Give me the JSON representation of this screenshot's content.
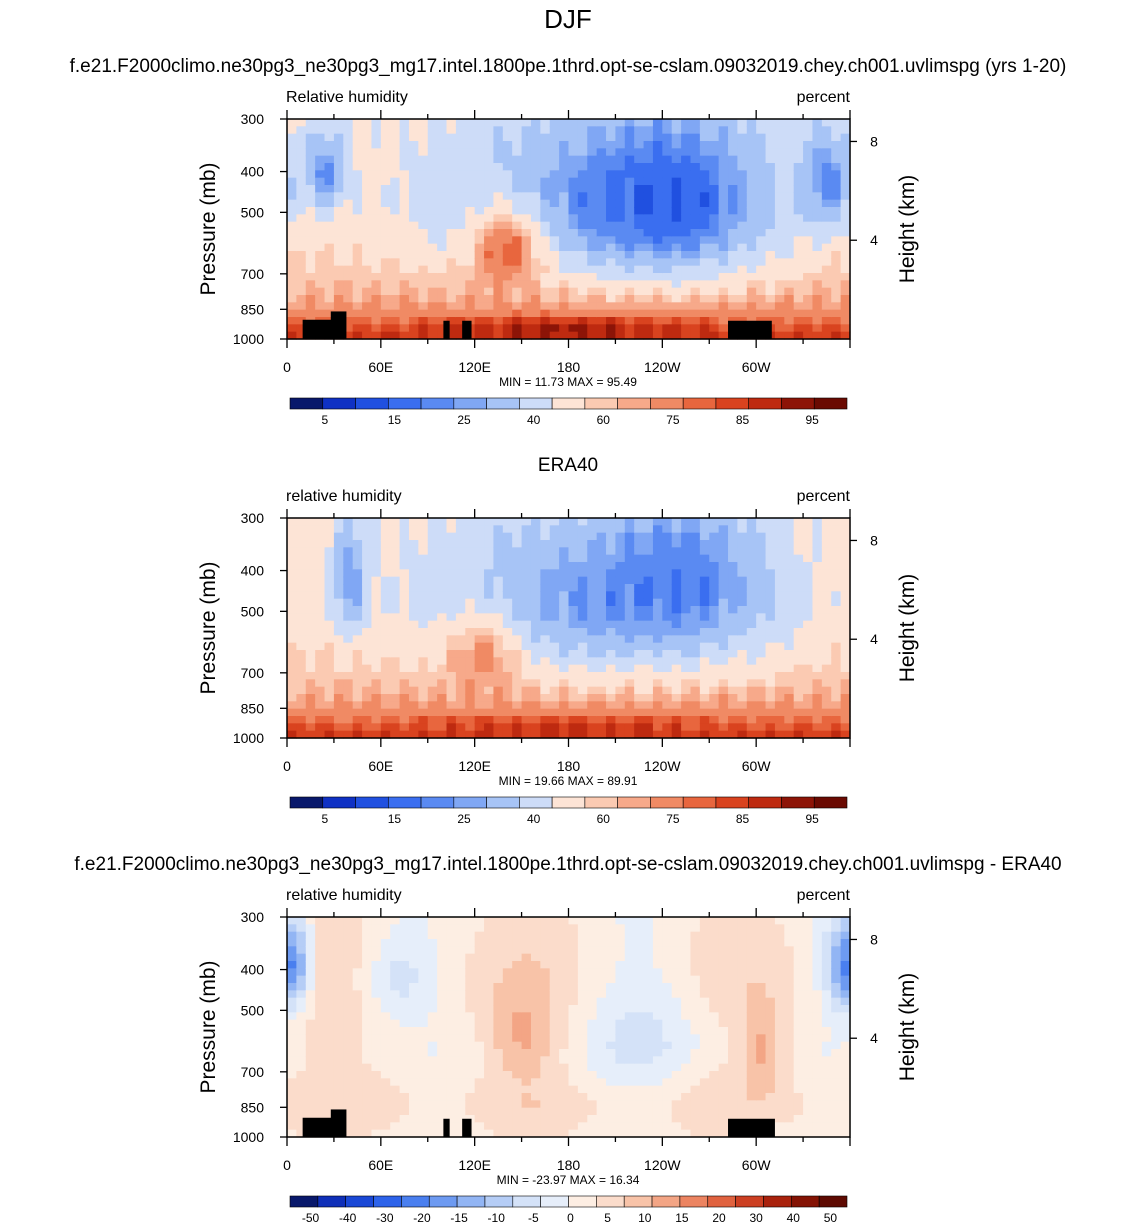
{
  "figure_title": "DJF",
  "chart_data": [
    {
      "type": "heatmap",
      "title": "f.e21.F2000climo.ne30pg3_ne30pg3_mg17.intel.1800pe.1thrd.opt-se-cslam.09032019.chey.ch001.uvlimspg (yrs 1-20)",
      "left_label": "Relative humidity",
      "right_label": "percent",
      "ylabel": "Pressure (mb)",
      "y2label": "Height (km)",
      "x_ticks": [
        "0",
        "60E",
        "120E",
        "180",
        "120W",
        "60W"
      ],
      "y_ticks": [
        "300",
        "400",
        "500",
        "700",
        "850",
        "1000"
      ],
      "y2_ticks": [
        "8",
        "4"
      ],
      "stats": "MIN = 11.73  MAX = 95.49",
      "colorbar_labels": [
        "5",
        "15",
        "25",
        "40",
        "60",
        "75",
        "85",
        "95"
      ],
      "levels": [
        0,
        5,
        10,
        15,
        20,
        25,
        30,
        40,
        50,
        60,
        65,
        70,
        75,
        80,
        85,
        90,
        95,
        100
      ],
      "features": [
        {
          "lon": 25,
          "p": 400,
          "value": 22,
          "radius_lon": 14,
          "radius_p": 90
        },
        {
          "lon": 245,
          "p": 470,
          "value": 15,
          "radius_lon": 55,
          "radius_p": 200
        },
        {
          "lon": 345,
          "p": 420,
          "value": 22,
          "radius_lon": 18,
          "radius_p": 120
        },
        {
          "lon": 140,
          "p": 620,
          "value": 78,
          "radius_lon": 25,
          "radius_p": 150
        },
        {
          "lon": 180,
          "p": 950,
          "value": 90,
          "radius_lon": 90,
          "radius_p": 60
        }
      ],
      "topography": [
        [
          10,
          30,
          900
        ],
        [
          28,
          38,
          860
        ],
        [
          100,
          104,
          905
        ],
        [
          112,
          118,
          905
        ],
        [
          282,
          310,
          905
        ]
      ]
    },
    {
      "type": "heatmap",
      "title": "ERA40",
      "left_label": "relative humidity",
      "right_label": "percent",
      "ylabel": "Pressure (mb)",
      "y2label": "Height (km)",
      "x_ticks": [
        "0",
        "60E",
        "120E",
        "180",
        "120W",
        "60W"
      ],
      "y_ticks": [
        "300",
        "400",
        "500",
        "700",
        "850",
        "1000"
      ],
      "y2_ticks": [
        "8",
        "4"
      ],
      "stats": "MIN = 19.66  MAX = 89.91",
      "colorbar_labels": [
        "5",
        "15",
        "25",
        "40",
        "60",
        "75",
        "85",
        "95"
      ],
      "levels": [
        0,
        5,
        10,
        15,
        20,
        25,
        30,
        40,
        50,
        60,
        65,
        70,
        75,
        80,
        85,
        90,
        95,
        100
      ],
      "features": [
        {
          "lon": 40,
          "p": 420,
          "value": 25,
          "radius_lon": 12,
          "radius_p": 130
        },
        {
          "lon": 250,
          "p": 420,
          "value": 20,
          "radius_lon": 50,
          "radius_p": 160
        },
        {
          "lon": 125,
          "p": 650,
          "value": 72,
          "radius_lon": 25,
          "radius_p": 150
        },
        {
          "lon": 180,
          "p": 950,
          "value": 85,
          "radius_lon": 90,
          "radius_p": 60
        }
      ],
      "topography": []
    },
    {
      "type": "heatmap",
      "title": "f.e21.F2000climo.ne30pg3_ne30pg3_mg17.intel.1800pe.1thrd.opt-se-cslam.09032019.chey.ch001.uvlimspg - ERA40",
      "left_label": "relative humidity",
      "right_label": "percent",
      "ylabel": "Pressure (mb)",
      "y2label": "Height (km)",
      "x_ticks": [
        "0",
        "60E",
        "120E",
        "180",
        "120W",
        "60W"
      ],
      "y_ticks": [
        "300",
        "400",
        "500",
        "700",
        "850",
        "1000"
      ],
      "y2_ticks": [
        "8",
        "4"
      ],
      "stats": "MIN = -23.97  MAX = 16.34",
      "colorbar_labels": [
        "-50",
        "-40",
        "-30",
        "-20",
        "-15",
        "-10",
        "-5",
        "0",
        "5",
        "10",
        "15",
        "20",
        "30",
        "40",
        "50"
      ],
      "levels": [
        -60,
        -50,
        -45,
        -40,
        -35,
        -30,
        -25,
        -20,
        -15,
        -10,
        -5,
        0,
        5,
        10,
        15,
        20,
        25,
        30,
        40,
        50,
        60
      ],
      "features": [
        {
          "lon": 5,
          "p": 390,
          "value": -20,
          "radius_lon": 12,
          "radius_p": 100
        },
        {
          "lon": 70,
          "p": 420,
          "value": -12,
          "radius_lon": 25,
          "radius_p": 100
        },
        {
          "lon": 150,
          "p": 580,
          "value": 10,
          "radius_lon": 22,
          "radius_p": 130
        },
        {
          "lon": 230,
          "p": 550,
          "value": -8,
          "radius_lon": 45,
          "radius_p": 220
        },
        {
          "lon": 305,
          "p": 620,
          "value": 12,
          "radius_lon": 14,
          "radius_p": 140
        },
        {
          "lon": 355,
          "p": 400,
          "value": -18,
          "radius_lon": 14,
          "radius_p": 100
        }
      ],
      "topography": [
        [
          10,
          30,
          900
        ],
        [
          28,
          38,
          860
        ],
        [
          100,
          104,
          905
        ],
        [
          112,
          118,
          905
        ],
        [
          282,
          312,
          905
        ]
      ]
    }
  ]
}
